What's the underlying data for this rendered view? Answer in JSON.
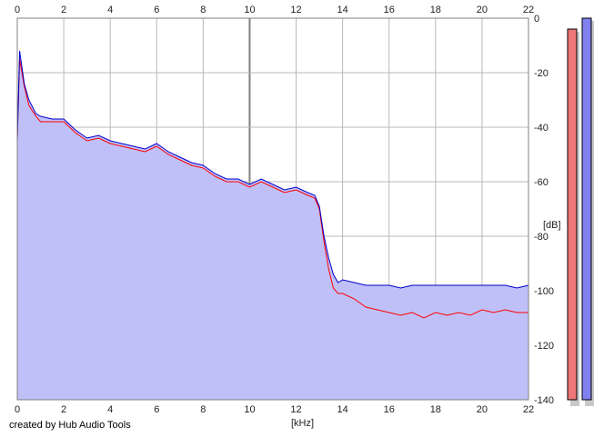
{
  "footer": {
    "credit": "created by Hub Audio Tools"
  },
  "colors": {
    "fill": "#c0c0f8",
    "series_a": "#ff0000",
    "series_b": "#0000cc",
    "grid": "#b8b8b8",
    "grid_major": "#808080",
    "meter_a": "#ee7777",
    "meter_b": "#8080ee"
  },
  "meters": [
    {
      "level_db": -4
    },
    {
      "level_db": 0
    }
  ],
  "chart_data": {
    "type": "line",
    "xlabel": "[kHz]",
    "ylabel": "[dB]",
    "xlim": [
      0,
      22
    ],
    "ylim": [
      -140,
      0
    ],
    "x_ticks": [
      "0",
      "2",
      "4",
      "6",
      "8",
      "10",
      "12",
      "14",
      "16",
      "18",
      "20",
      "22"
    ],
    "y_ticks": [
      "0",
      "-20",
      "-40",
      "-60",
      "-80",
      "-100",
      "-120",
      "-140"
    ],
    "x_tick_values": [
      0,
      2,
      4,
      6,
      8,
      10,
      12,
      14,
      16,
      18,
      20,
      22
    ],
    "y_tick_values": [
      0,
      -20,
      -40,
      -60,
      -80,
      -100,
      -120,
      -140
    ],
    "grid": true,
    "fill_under": true,
    "x": [
      0,
      0.1,
      0.2,
      0.3,
      0.5,
      0.8,
      1.0,
      1.5,
      2.0,
      2.5,
      3.0,
      3.5,
      4.0,
      4.5,
      5.0,
      5.5,
      6.0,
      6.5,
      7.0,
      7.5,
      8.0,
      8.5,
      9.0,
      9.5,
      10.0,
      10.5,
      11.0,
      11.5,
      12.0,
      12.5,
      12.8,
      13.0,
      13.2,
      13.4,
      13.6,
      13.8,
      14.0,
      14.5,
      15.0,
      15.5,
      16.0,
      16.5,
      17.0,
      17.5,
      18.0,
      18.5,
      19.0,
      19.5,
      20.0,
      20.5,
      21.0,
      21.5,
      22.0
    ],
    "series": [
      {
        "values": [
          -45,
          -15,
          -20,
          -25,
          -32,
          -36,
          -38,
          -38,
          -38,
          -42,
          -45,
          -44,
          -46,
          -47,
          -48,
          -49,
          -47,
          -50,
          -52,
          -54,
          -55,
          -58,
          -60,
          -60,
          -62,
          -60,
          -62,
          -64,
          -63,
          -65,
          -66,
          -70,
          -82,
          -92,
          -99,
          -101,
          -101,
          -103,
          -106,
          -107,
          -108,
          -109,
          -108,
          -110,
          -108,
          -109,
          -108,
          -109,
          -107,
          -108,
          -107,
          -108,
          -108
        ]
      },
      {
        "values": [
          -45,
          -12,
          -18,
          -24,
          -30,
          -35,
          -36,
          -37,
          -37,
          -41,
          -44,
          -43,
          -45,
          -46,
          -47,
          -48,
          -46,
          -49,
          -51,
          -53,
          -54,
          -57,
          -59,
          -59,
          -61,
          -59,
          -61,
          -63,
          -62,
          -64,
          -65,
          -69,
          -80,
          -88,
          -94,
          -97,
          -96,
          -97,
          -98,
          -98,
          -98,
          -99,
          -98,
          -98,
          -98,
          -98,
          -98,
          -98,
          -98,
          -98,
          -98,
          -99,
          -98
        ]
      }
    ]
  }
}
